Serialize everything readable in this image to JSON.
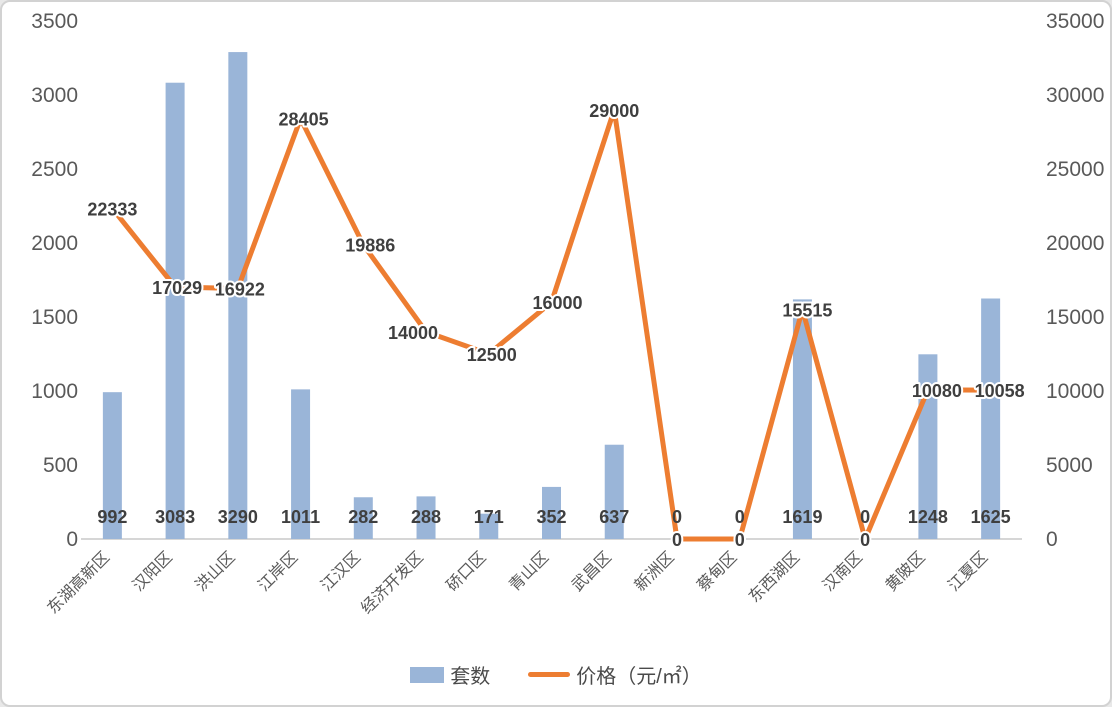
{
  "legend": {
    "series1_label": "套数",
    "series2_label": "价格（元/㎡）"
  },
  "colors": {
    "bar": "#9ab5d8",
    "line": "#ed7d31",
    "data_label": "#3f3f3f",
    "axis_text": "#595959",
    "axis_line": "#d6d6d6",
    "background": "#ffffff",
    "border": "#d2d2d2"
  },
  "chart_data": {
    "type": "bar",
    "subtype": "combo-bar-line-dual-axis",
    "title": "",
    "xlabel": "",
    "ylabel_left": "",
    "ylabel_right": "",
    "grid": false,
    "legend_position": "bottom",
    "categories": [
      "东湖高新区",
      "汉阳区",
      "洪山区",
      "江岸区",
      "江汉区",
      "经济开发区",
      "硚口区",
      "青山区",
      "武昌区",
      "新洲区",
      "蔡甸区",
      "东西湖区",
      "汉南区",
      "黄陂区",
      "江夏区"
    ],
    "series": [
      {
        "name": "套数",
        "type": "bar",
        "axis": "left",
        "color": "#9ab5d8",
        "values": [
          992,
          3083,
          3290,
          1011,
          282,
          288,
          171,
          352,
          637,
          0,
          0,
          1619,
          0,
          1248,
          1625
        ],
        "labels": [
          "992",
          "3083",
          "3290",
          "1011",
          "282",
          "288",
          "171",
          "352",
          "637",
          "0",
          "0",
          "1619",
          "0",
          "1248",
          "1625"
        ]
      },
      {
        "name": "价格（元/㎡）",
        "type": "line",
        "axis": "right",
        "color": "#ed7d31",
        "values": [
          22333,
          17029,
          16922,
          28405,
          19886,
          14000,
          12500,
          16000,
          29000,
          0,
          0,
          15515,
          0,
          10080,
          10058
        ],
        "labels": [
          "22333",
          "17029",
          "16922",
          "28405",
          "19886",
          "14000",
          "12500",
          "16000",
          "29000",
          "0",
          "0",
          "15515",
          "0",
          "10080",
          "10058"
        ]
      }
    ],
    "left_axis": {
      "min": 0,
      "max": 3500,
      "step": 500,
      "ticks": [
        "0",
        "500",
        "1000",
        "1500",
        "2000",
        "2500",
        "3000",
        "3500"
      ]
    },
    "right_axis": {
      "min": 0,
      "max": 35000,
      "step": 5000,
      "ticks": [
        "0",
        "5000",
        "10000",
        "15000",
        "20000",
        "25000",
        "30000",
        "35000"
      ]
    }
  }
}
